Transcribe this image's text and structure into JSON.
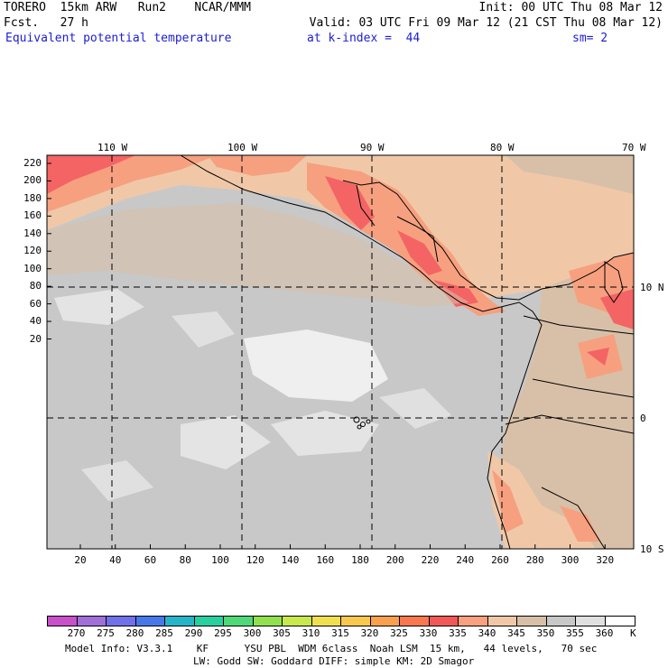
{
  "header": {
    "line1_left": "TORERO  15km ARW   Run2    NCAR/MMM",
    "line1_right": "Init: 00 UTC Thu 08 Mar 12",
    "line2_left": "Fcst.   27 h",
    "line2_right": "Valid: 03 UTC Fri 09 Mar 12 (21 CST Thu 08 Mar 12)",
    "field": "Equivalent potential temperature",
    "level": "at k-index =  44",
    "smooth": "sm= 2"
  },
  "map": {
    "lon_labels": [
      "110 W",
      "100 W",
      "90 W",
      "80 W",
      "70 W"
    ],
    "lat_labels": [
      "10 N",
      "0",
      "10 S"
    ],
    "y_ticks": [
      "220",
      "200",
      "180",
      "160",
      "140",
      "120",
      "100",
      "80",
      "60",
      "40",
      "20"
    ],
    "x_ticks": [
      "20",
      "40",
      "60",
      "80",
      "100",
      "120",
      "140",
      "160",
      "180",
      "200",
      "220",
      "240",
      "260",
      "280",
      "300",
      "320"
    ],
    "colors": {
      "ocean_gray": "#c8c8c8",
      "light_gray": "#dcdcdc",
      "near_white": "#efefef",
      "peach_340": "#f0c8a8",
      "salmon_335": "#f6a080",
      "red_330": "#f46464",
      "tan_345": "#d8c0a8"
    }
  },
  "colorbar": {
    "unit": "K",
    "labels": [
      "270",
      "275",
      "280",
      "285",
      "290",
      "295",
      "300",
      "305",
      "310",
      "315",
      "320",
      "325",
      "330",
      "335",
      "340",
      "345",
      "350",
      "355",
      "360"
    ],
    "colors": [
      "#c850c8",
      "#a070d8",
      "#7070e8",
      "#4878e8",
      "#28b4c8",
      "#28d0a0",
      "#50d878",
      "#90e050",
      "#c8e850",
      "#f0e050",
      "#f8c850",
      "#f8a050",
      "#f87850",
      "#f05858",
      "#f8a080",
      "#f0c8a8",
      "#d8c0a8",
      "#c8c8c8",
      "#e0e0e0",
      "#ffffff"
    ]
  },
  "footer": {
    "line1": "Model Info: V3.3.1    KF      YSU PBL  WDM 6class  Noah LSM  15 km,   44 levels,   70 sec",
    "line2": "LW: Godd SW: Goddard DIFF: simple KM: 2D Smagor"
  }
}
